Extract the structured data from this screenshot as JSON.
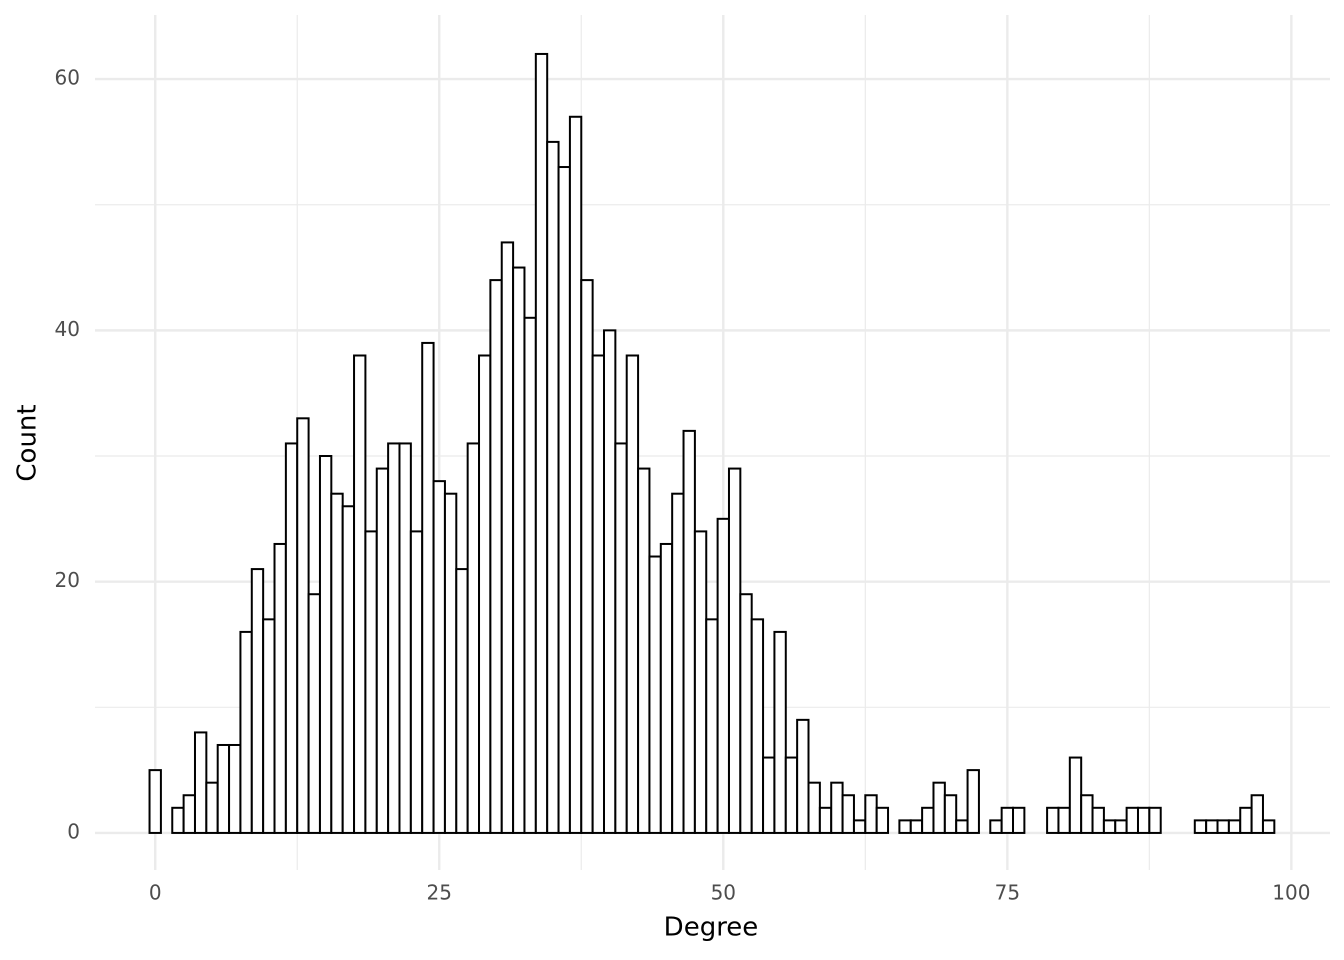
{
  "chart_data": {
    "type": "histogram",
    "x_label": "Degree",
    "y_label": "Count",
    "bins": [
      -0.5,
      0.5,
      1.5,
      2.5,
      3.5,
      4.5,
      5.5,
      6.5,
      7.5,
      8.5,
      9.5,
      10.5,
      11.5,
      12.5,
      13.5,
      14.5,
      15.5,
      16.5,
      17.5,
      18.5,
      19.5,
      20.5,
      21.5,
      22.5,
      23.5,
      24.5,
      25.5,
      26.5,
      27.5,
      28.5,
      29.5,
      30.5,
      31.5,
      32.5,
      33.5,
      34.5,
      35.5,
      36.5,
      37.5,
      38.5,
      39.5,
      40.5,
      41.5,
      42.5,
      43.5,
      44.5,
      45.5,
      46.5,
      47.5,
      48.5,
      49.5,
      50.5,
      51.5,
      52.5,
      53.5,
      54.5,
      55.5,
      56.5,
      57.5,
      58.5,
      59.5,
      60.5,
      61.5,
      62.5,
      63.5,
      64.5,
      65.5,
      66.5,
      67.5,
      68.5,
      69.5,
      70.5,
      71.5,
      72.5,
      73.5,
      74.5,
      75.5,
      76.5,
      77.5,
      78.5,
      79.5,
      80.5,
      81.5,
      82.5,
      83.5,
      84.5,
      85.5,
      86.5,
      87.5,
      88.5,
      89.5,
      90.5,
      91.5,
      92.5,
      93.5,
      94.5,
      95.5,
      96.5,
      97.5,
      98.5
    ],
    "values": [
      5,
      0,
      2,
      3,
      8,
      4,
      7,
      7,
      16,
      21,
      17,
      23,
      31,
      33,
      19,
      30,
      27,
      26,
      38,
      24,
      29,
      31,
      31,
      24,
      39,
      28,
      27,
      21,
      31,
      38,
      44,
      47,
      45,
      41,
      62,
      55,
      53,
      57,
      44,
      38,
      40,
      31,
      38,
      29,
      22,
      23,
      27,
      32,
      24,
      17,
      25,
      29,
      19,
      17,
      6,
      16,
      6,
      9,
      4,
      2,
      4,
      3,
      1,
      3,
      2,
      0,
      1,
      1,
      2,
      4,
      3,
      1,
      5,
      0,
      1,
      2,
      2,
      0,
      0,
      2,
      2,
      6,
      3,
      2,
      1,
      1,
      2,
      2,
      2,
      0,
      0,
      0,
      1,
      1,
      1,
      1,
      2,
      3,
      1
    ],
    "fill": "#ffffff",
    "edge_color": "#000000",
    "xlim": [
      -5.3,
      103.4
    ],
    "ylim": [
      -2.95,
      65.1
    ],
    "xticks": [
      0,
      25,
      50,
      75,
      100
    ],
    "yticks": [
      0,
      20,
      40,
      60
    ],
    "x_minor_grid": [
      12.5,
      37.5,
      62.5,
      87.5
    ],
    "y_minor_grid": [
      10,
      30,
      50
    ],
    "grid": true
  }
}
